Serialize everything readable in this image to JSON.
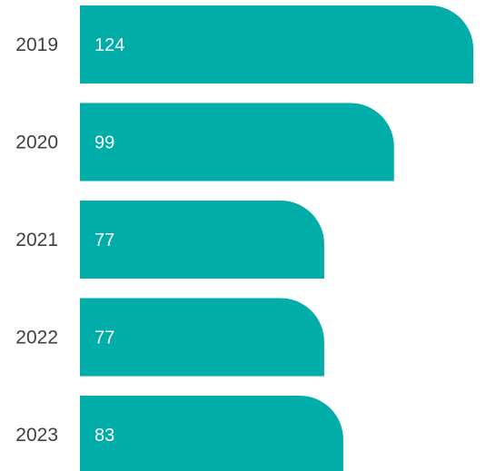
{
  "chart_data": {
    "type": "bar",
    "orientation": "horizontal",
    "categories": [
      "2019",
      "2020",
      "2021",
      "2022",
      "2023"
    ],
    "values": [
      124,
      99,
      77,
      77,
      83
    ],
    "value_labels": [
      "124",
      "99",
      "77",
      "77",
      "83"
    ],
    "title": "",
    "xlabel": "",
    "ylabel": "",
    "xlim": [
      0,
      128
    ],
    "grid": false,
    "legend": "none",
    "bar_color": "#00ADA9"
  }
}
